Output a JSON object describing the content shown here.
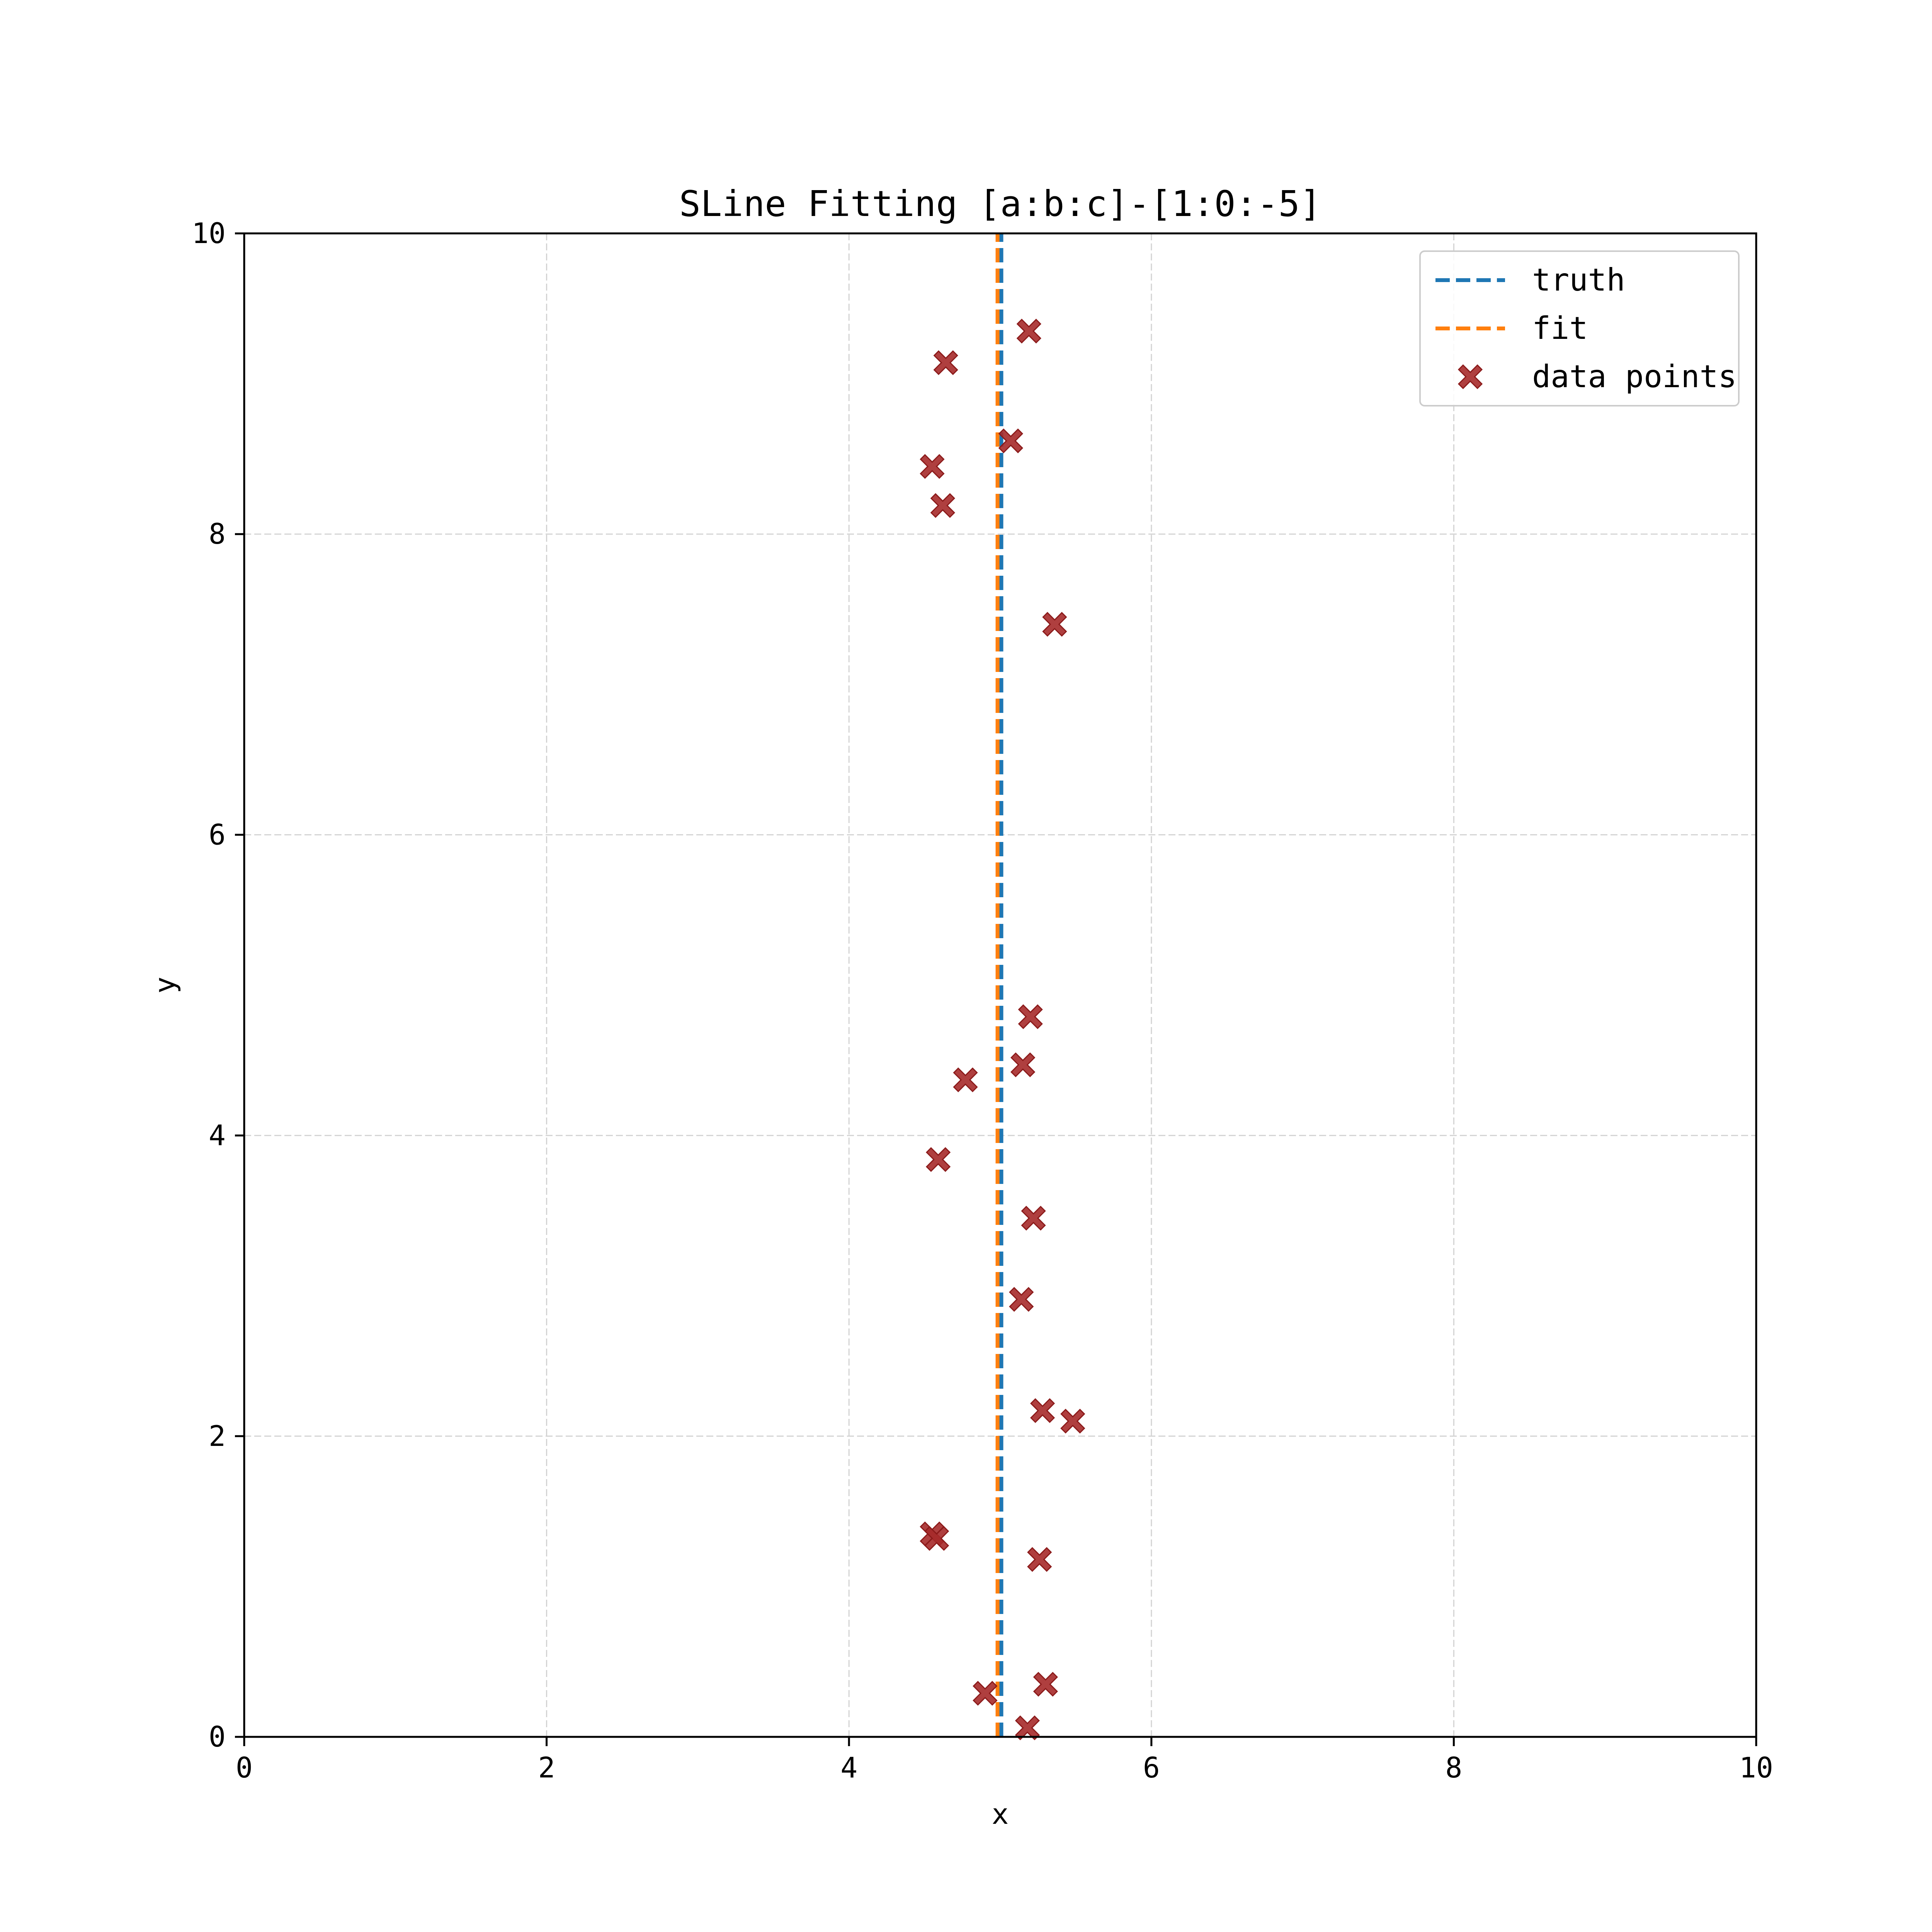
{
  "chart_data": {
    "type": "scatter",
    "title": "SLine Fitting [a:b:c]-[1:0:-5]",
    "xlabel": "x",
    "ylabel": "y",
    "xlim": [
      0,
      10
    ],
    "ylim": [
      0,
      10
    ],
    "xticks": [
      0,
      2,
      4,
      6,
      8,
      10
    ],
    "yticks": [
      0,
      2,
      4,
      6,
      8,
      10
    ],
    "xtick_labels": [
      "0",
      "2",
      "4",
      "6",
      "8",
      "10"
    ],
    "ytick_labels": [
      "0",
      "2",
      "4",
      "6",
      "8",
      "10"
    ],
    "grid": true,
    "legend_position": "top-right",
    "lines": [
      {
        "name": "truth",
        "color": "#1f77b4",
        "style": "dashed",
        "x": [
          5,
          5
        ],
        "y": [
          0,
          10
        ]
      },
      {
        "name": "fit",
        "color": "#ff7f0e",
        "style": "dashed",
        "x": [
          4.99,
          4.99
        ],
        "y": [
          0,
          10
        ]
      }
    ],
    "series": [
      {
        "name": "data points",
        "marker": "x-filled",
        "color": "#a62a2a",
        "points": [
          [
            5.19,
            9.35
          ],
          [
            4.64,
            9.14
          ],
          [
            5.07,
            8.62
          ],
          [
            4.55,
            8.45
          ],
          [
            4.62,
            8.19
          ],
          [
            5.36,
            7.4
          ],
          [
            5.2,
            4.79
          ],
          [
            5.15,
            4.47
          ],
          [
            4.77,
            4.37
          ],
          [
            4.59,
            3.84
          ],
          [
            5.22,
            3.45
          ],
          [
            5.14,
            2.91
          ],
          [
            5.28,
            2.17
          ],
          [
            5.48,
            2.1
          ],
          [
            4.55,
            1.35
          ],
          [
            4.58,
            1.32
          ],
          [
            5.26,
            1.18
          ],
          [
            5.3,
            0.35
          ],
          [
            4.9,
            0.29
          ],
          [
            5.18,
            0.06
          ]
        ]
      }
    ]
  }
}
